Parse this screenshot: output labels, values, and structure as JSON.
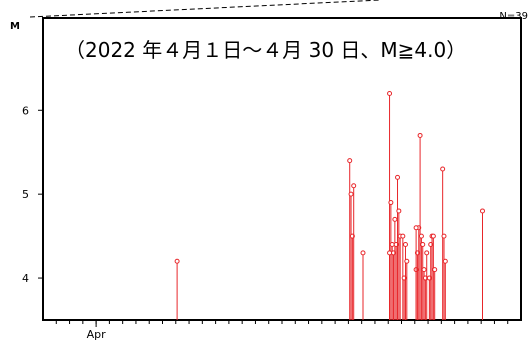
{
  "chart_data": {
    "type": "scatter",
    "title": "（2022 年４月１日～４月 30 日、M≧4.0）",
    "ylabel": "M",
    "count_label": "N=39",
    "xlim": [
      "2022-03-28",
      "2022-05-03"
    ],
    "ylim": [
      3.5,
      7.1
    ],
    "yticks": [
      4,
      5,
      6
    ],
    "x_tick_labels": [
      {
        "date": "2022-04-01",
        "label": "Apr"
      }
    ],
    "marker_color": "#e8262a",
    "grid": false,
    "points": [
      {
        "x": "2022-04-07",
        "y": 4.2
      },
      {
        "x": "2022-04-20",
        "y": 5.4
      },
      {
        "x": "2022-04-20",
        "y": 5.0
      },
      {
        "x": "2022-04-20",
        "y": 4.5
      },
      {
        "x": "2022-04-20",
        "y": 5.1
      },
      {
        "x": "2022-04-21",
        "y": 4.3
      },
      {
        "x": "2022-04-23",
        "y": 6.2
      },
      {
        "x": "2022-04-23",
        "y": 4.9
      },
      {
        "x": "2022-04-23",
        "y": 4.4
      },
      {
        "x": "2022-04-23",
        "y": 4.3
      },
      {
        "x": "2022-04-23",
        "y": 4.7
      },
      {
        "x": "2022-04-23",
        "y": 4.4
      },
      {
        "x": "2022-04-23",
        "y": 5.2
      },
      {
        "x": "2022-04-23",
        "y": 4.8
      },
      {
        "x": "2022-04-23",
        "y": 4.5
      },
      {
        "x": "2022-04-23",
        "y": 4.3
      },
      {
        "x": "2022-04-24",
        "y": 4.5
      },
      {
        "x": "2022-04-24",
        "y": 4.0
      },
      {
        "x": "2022-04-24",
        "y": 4.4
      },
      {
        "x": "2022-04-24",
        "y": 4.2
      },
      {
        "x": "2022-04-25",
        "y": 4.1
      },
      {
        "x": "2022-04-25",
        "y": 4.3
      },
      {
        "x": "2022-04-25",
        "y": 4.6
      },
      {
        "x": "2022-04-25",
        "y": 5.7
      },
      {
        "x": "2022-04-25",
        "y": 4.5
      },
      {
        "x": "2022-04-25",
        "y": 4.4
      },
      {
        "x": "2022-04-25",
        "y": 4.1
      },
      {
        "x": "2022-04-25",
        "y": 4.0
      },
      {
        "x": "2022-04-25",
        "y": 4.3
      },
      {
        "x": "2022-04-25",
        "y": 4.6
      },
      {
        "x": "2022-04-26",
        "y": 4.0
      },
      {
        "x": "2022-04-26",
        "y": 4.4
      },
      {
        "x": "2022-04-26",
        "y": 4.5
      },
      {
        "x": "2022-04-26",
        "y": 4.5
      },
      {
        "x": "2022-04-26",
        "y": 4.1
      },
      {
        "x": "2022-04-27",
        "y": 5.3
      },
      {
        "x": "2022-04-27",
        "y": 4.5
      },
      {
        "x": "2022-04-27",
        "y": 4.2
      },
      {
        "x": "2022-04-30",
        "y": 4.8
      }
    ]
  }
}
